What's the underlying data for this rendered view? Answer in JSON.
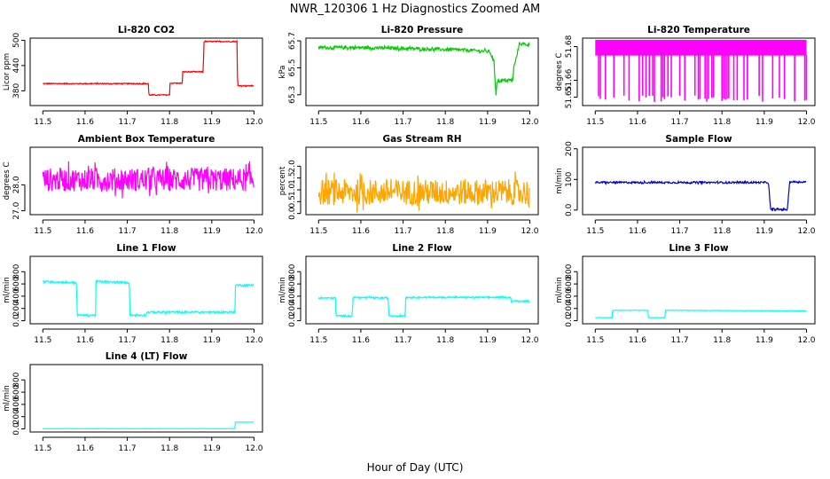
{
  "figure": {
    "title": "NWR_120306  1 Hz Diagnostics Zoomed AM",
    "xlabel": "Hour of Day (UTC)"
  },
  "chart_data": [
    {
      "type": "line",
      "title": "Li-820 CO2",
      "ylabel": "Licor ppm",
      "color": "#ff0000",
      "xlim": [
        11.47,
        12.02
      ],
      "ylim": [
        345,
        505
      ],
      "xticks": [
        11.5,
        11.6,
        11.7,
        11.8,
        11.9,
        12.0
      ],
      "yticks": [
        380,
        440,
        500
      ],
      "noise": 1.2,
      "series": [
        {
          "x": [
            11.5,
            11.75,
            11.751,
            11.8,
            11.801,
            11.83,
            11.831,
            11.88,
            11.881,
            11.96,
            11.961,
            12.0
          ],
          "y": [
            397,
            397,
            370,
            370,
            398,
            398,
            425,
            425,
            497,
            497,
            392,
            392
          ]
        }
      ]
    },
    {
      "type": "line",
      "title": "Li-820 Pressure",
      "ylabel": "kPa",
      "color": "#00cc00",
      "xlim": [
        11.47,
        12.02
      ],
      "ylim": [
        65.22,
        65.72
      ],
      "xticks": [
        11.5,
        11.6,
        11.7,
        11.8,
        11.9,
        12.0
      ],
      "yticks": [
        65.3,
        65.5,
        65.7
      ],
      "noise": 0.012,
      "series": [
        {
          "x": [
            11.5,
            11.6,
            11.75,
            11.86,
            11.905,
            11.915,
            11.92,
            11.922,
            11.96,
            11.962,
            11.97,
            11.975,
            12.0
          ],
          "y": [
            65.65,
            65.65,
            65.64,
            65.63,
            65.62,
            65.55,
            65.3,
            65.4,
            65.41,
            65.5,
            65.6,
            65.68,
            65.67
          ]
        }
      ]
    },
    {
      "type": "line",
      "title": "Li-820 Temperature",
      "ylabel": "degrees C",
      "color": "#ff00ff",
      "xlim": [
        11.47,
        12.02
      ],
      "ylim": [
        51.645,
        51.685
      ],
      "xticks": [
        11.5,
        11.6,
        11.7,
        11.8,
        11.9,
        12.0
      ],
      "yticks": [
        51.65,
        51.66,
        51.68
      ],
      "noise": 0.0,
      "series": [
        {
          "x": [
            11.5,
            12.0
          ],
          "y": [
            51.675,
            51.675
          ],
          "spike_low": 51.647,
          "spike_high": 51.684
        }
      ]
    },
    {
      "type": "line",
      "title": "Ambient Box Temperature",
      "ylabel": "degrees C",
      "color": "#ff00ff",
      "xlim": [
        11.47,
        12.02
      ],
      "ylim": [
        26.85,
        29.45
      ],
      "xticks": [
        11.5,
        11.6,
        11.7,
        11.8,
        11.9,
        12.0
      ],
      "yticks": [
        27.0,
        28.0
      ],
      "noise": 0.45,
      "series": [
        {
          "x": [
            11.5,
            12.0
          ],
          "y": [
            28.2,
            28.2
          ]
        }
      ]
    },
    {
      "type": "line",
      "title": "Gas Stream RH",
      "ylabel": "percent",
      "color": "#ffa500",
      "xlim": [
        11.47,
        12.02
      ],
      "ylim": [
        -0.05,
        2.8
      ],
      "xticks": [
        11.5,
        11.6,
        11.7,
        11.8,
        11.9,
        12.0
      ],
      "yticks": [
        0.0,
        0.5,
        1.0,
        1.5,
        2.0
      ],
      "noise": 0.55,
      "series": [
        {
          "x": [
            11.5,
            12.0
          ],
          "y": [
            0.9,
            0.9
          ]
        }
      ]
    },
    {
      "type": "line",
      "title": "Sample Flow",
      "ylabel": "ml/min",
      "color": "#0000cc",
      "xlim": [
        11.47,
        12.02
      ],
      "ylim": [
        -15,
        205
      ],
      "xticks": [
        11.5,
        11.6,
        11.7,
        11.8,
        11.9,
        12.0
      ],
      "yticks": [
        0,
        100,
        200
      ],
      "noise": 3,
      "series": [
        {
          "x": [
            11.5,
            11.91,
            11.915,
            11.955,
            11.96,
            12.0
          ],
          "y": [
            90,
            90,
            2,
            2,
            92,
            92
          ]
        }
      ]
    },
    {
      "type": "line",
      "title": "Line 1 Flow",
      "ylabel": "ml/min",
      "color": "#00ffff",
      "xlim": [
        11.47,
        12.02
      ],
      "ylim": [
        -50,
        1050
      ],
      "xticks": [
        11.5,
        11.6,
        11.7,
        11.8,
        11.9,
        12.0
      ],
      "yticks": [
        0,
        200,
        400,
        600,
        800
      ],
      "noise": 15,
      "series": [
        {
          "x": [
            11.5,
            11.58,
            11.581,
            11.625,
            11.626,
            11.705,
            11.706,
            11.745,
            11.746,
            11.955,
            11.956,
            12.0
          ],
          "y": [
            640,
            620,
            90,
            90,
            640,
            620,
            90,
            90,
            140,
            140,
            580,
            580
          ]
        }
      ]
    },
    {
      "type": "line",
      "title": "Line 2 Flow",
      "ylabel": "ml/min",
      "color": "#00ffff",
      "xlim": [
        11.47,
        12.02
      ],
      "ylim": [
        -50,
        1050
      ],
      "xticks": [
        11.5,
        11.6,
        11.7,
        11.8,
        11.9,
        12.0
      ],
      "yticks": [
        0,
        200,
        400,
        600,
        800
      ],
      "noise": 12,
      "series": [
        {
          "x": [
            11.5,
            11.54,
            11.541,
            11.58,
            11.581,
            11.665,
            11.666,
            11.705,
            11.706,
            11.955,
            11.956,
            12.0
          ],
          "y": [
            370,
            370,
            80,
            80,
            380,
            370,
            80,
            80,
            380,
            380,
            320,
            320
          ]
        }
      ]
    },
    {
      "type": "line",
      "title": "Line 3 Flow",
      "ylabel": "ml/min",
      "color": "#00ffff",
      "xlim": [
        11.47,
        12.02
      ],
      "ylim": [
        -50,
        1050
      ],
      "xticks": [
        11.5,
        11.6,
        11.7,
        11.8,
        11.9,
        12.0
      ],
      "yticks": [
        0,
        200,
        400,
        600,
        800
      ],
      "noise": 3,
      "series": [
        {
          "x": [
            11.5,
            11.54,
            11.541,
            11.625,
            11.626,
            11.665,
            11.666,
            12.0
          ],
          "y": [
            50,
            50,
            170,
            170,
            50,
            50,
            170,
            160
          ]
        }
      ]
    },
    {
      "type": "line",
      "title": "Line 4 (LT) Flow",
      "ylabel": "ml/min",
      "color": "#00ffff",
      "xlim": [
        11.47,
        12.02
      ],
      "ylim": [
        -50,
        1050
      ],
      "xticks": [
        11.5,
        11.6,
        11.7,
        11.8,
        11.9,
        12.0
      ],
      "yticks": [
        0,
        200,
        400,
        600,
        800
      ],
      "noise": 2,
      "series": [
        {
          "x": [
            11.5,
            11.955,
            11.956,
            12.0
          ],
          "y": [
            5,
            5,
            110,
            110
          ]
        }
      ]
    }
  ]
}
